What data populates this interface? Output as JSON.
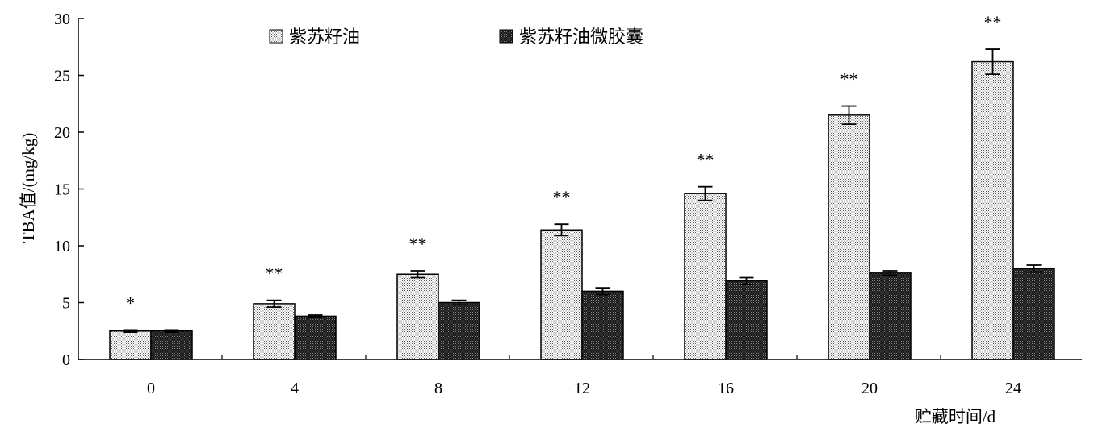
{
  "chart_data": {
    "type": "bar",
    "xlabel": "贮藏时间/d",
    "ylabel": "TBA值/(mg/kg)",
    "ylim": [
      0,
      30
    ],
    "yticks": [
      0,
      5,
      10,
      15,
      20,
      25,
      30
    ],
    "categories": [
      "0",
      "4",
      "8",
      "12",
      "16",
      "20",
      "24"
    ],
    "series": [
      {
        "name": "紫苏籽油",
        "values": [
          2.5,
          4.9,
          7.5,
          11.4,
          14.6,
          21.5,
          26.2
        ],
        "errors": [
          0.1,
          0.3,
          0.3,
          0.5,
          0.6,
          0.8,
          1.1
        ],
        "pattern": "dots-light"
      },
      {
        "name": "紫苏籽油微胶囊",
        "values": [
          2.5,
          3.8,
          5.0,
          6.0,
          6.9,
          7.6,
          8.0
        ],
        "errors": [
          0.1,
          0.1,
          0.2,
          0.3,
          0.3,
          0.2,
          0.3
        ],
        "pattern": "dots-dark"
      }
    ],
    "significance": [
      "*",
      "**",
      "**",
      "**",
      "**",
      "**",
      "**"
    ],
    "legend_position": "top",
    "grid": false
  }
}
